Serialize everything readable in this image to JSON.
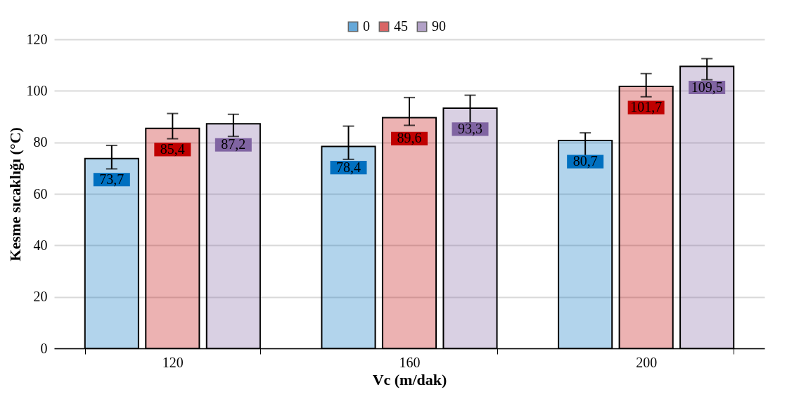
{
  "chart_data": {
    "type": "bar",
    "xlabel": "Vc (m/dak)",
    "ylabel": "Kesme sıcaklığı (°C)",
    "categories": [
      "120",
      "160",
      "200"
    ],
    "series": [
      {
        "name": "0",
        "color": "#0070c0",
        "values": [
          73.7,
          78.4,
          80.7
        ],
        "value_labels": [
          "73,7",
          "78,4",
          "80,7"
        ],
        "errors": [
          [
            69.7,
            78.8
          ],
          [
            73.4,
            86.3
          ],
          [
            74.6,
            83.7
          ]
        ]
      },
      {
        "name": "45",
        "color": "#c00000",
        "values": [
          85.4,
          89.6,
          101.7
        ],
        "value_labels": [
          "85,4",
          "89,6",
          "101,7"
        ],
        "errors": [
          [
            81.4,
            91.2
          ],
          [
            86.6,
            97.4
          ],
          [
            97.7,
            106.7
          ]
        ]
      },
      {
        "name": "90",
        "color": "#8064a2",
        "values": [
          87.2,
          93.3,
          109.5
        ],
        "value_labels": [
          "87,2",
          "93,3",
          "109,5"
        ],
        "errors": [
          [
            82.3,
            90.9
          ],
          [
            87.5,
            98.3
          ],
          [
            104.3,
            112.5
          ]
        ]
      }
    ],
    "ylim": [
      0,
      120
    ],
    "yticks": [
      0,
      20,
      40,
      60,
      80,
      100,
      120
    ],
    "grid": "y",
    "legend": "top"
  }
}
